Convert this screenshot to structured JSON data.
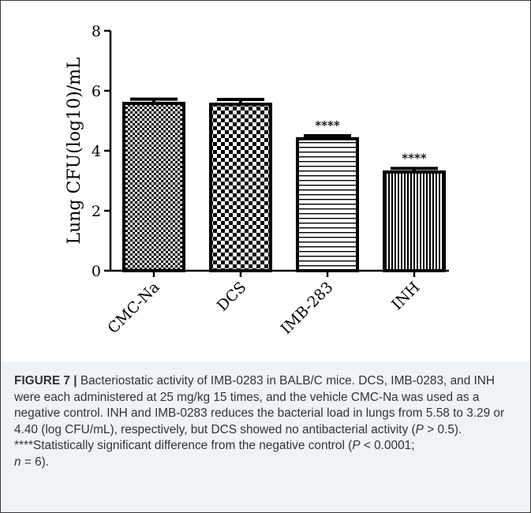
{
  "chart_data": {
    "type": "bar",
    "categories": [
      "CMC-Na",
      "DCS",
      "IMB-283",
      "INH"
    ],
    "values": [
      5.58,
      5.55,
      4.4,
      3.29
    ],
    "errors": [
      0.14,
      0.16,
      0.1,
      0.12
    ],
    "significance": [
      "",
      "",
      "****",
      "****"
    ],
    "patterns": [
      "diamond-check",
      "checkerboard",
      "horizontal-stripes",
      "vertical-stripes"
    ],
    "ylabel": "Lung CFU(log10)/mL",
    "xlabel": "",
    "ylim": [
      0,
      8
    ],
    "yticks": [
      0,
      2,
      4,
      6,
      8
    ],
    "grid": false,
    "colors": {
      "bar_stroke": "#000000",
      "axis": "#000000",
      "caption_bg": "#eef3f8"
    }
  },
  "caption": {
    "figure_label": "FIGURE 7 |",
    "text": " Bacteriostatic activity of IMB-0283 in BALB/C mice. DCS, IMB-0283, and INH were each administered at 25 mg/kg 15 times, and the vehicle CMC-Na was used as a negative control. INH and IMB-0283 reduces the bacterial load in lungs from 5.58 to 3.29 or 4.40 (log CFU/mL), respectively, but DCS showed no antibacterial activity (",
    "p1_var": "P",
    "p1_rest": " > 0.5).",
    "footnote_stars": "****",
    "footnote_text": "Statistically significant difference from the negative control (",
    "p2_var": "P",
    "p2_rest": " < 0.0001;",
    "n_var": "n",
    "n_rest": " = 6)."
  }
}
